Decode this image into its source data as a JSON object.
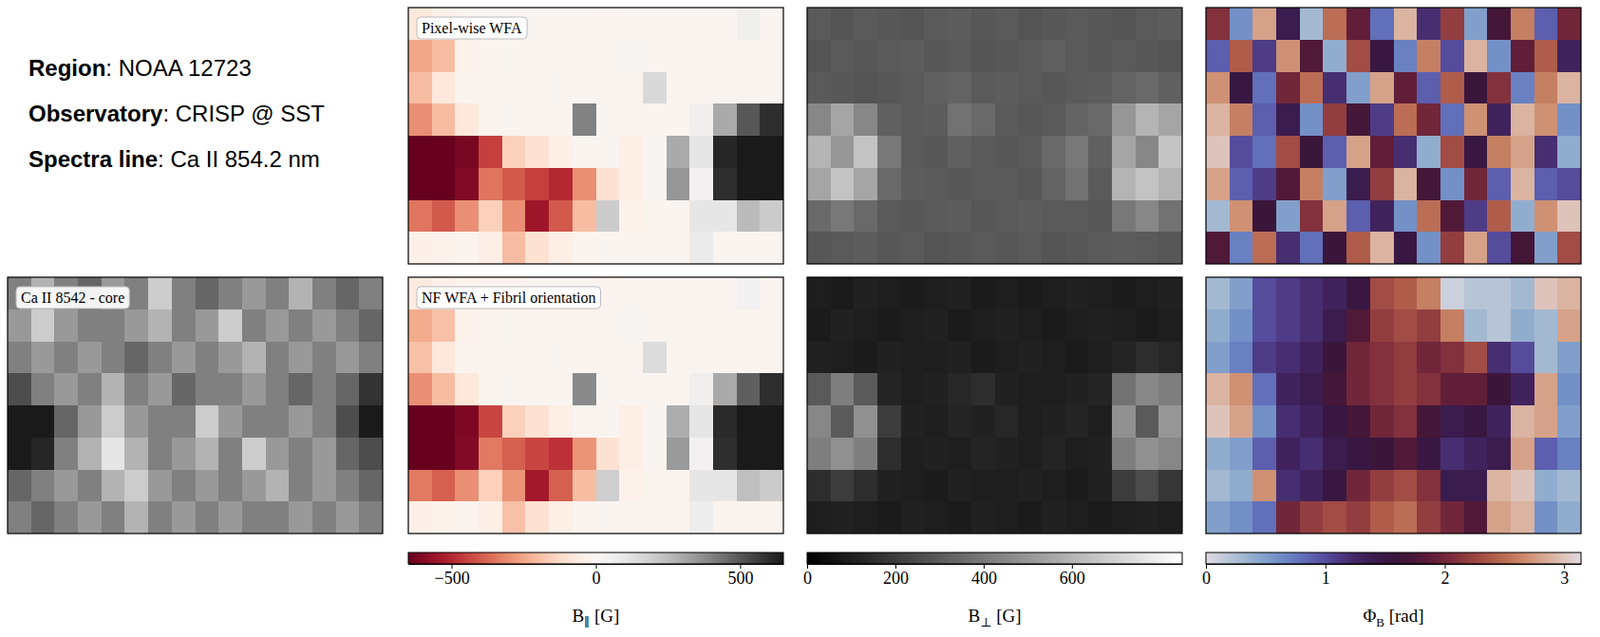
{
  "header": {
    "lines": [
      "Region: NOAA 12723",
      "Observatory: CRISP @ SST",
      "Spectra line: Ca II 854.2 nm"
    ]
  },
  "chart_data": [
    {
      "type": "heatmap",
      "title": "Ca II 8542 - core",
      "color": "gray",
      "zlim": [
        0,
        1
      ],
      "cells": [
        [
          0.5,
          0.7,
          0.5,
          0.4,
          0.6,
          0.5,
          0.8,
          0.5,
          0.4,
          0.5,
          0.6,
          0.5,
          0.7,
          0.5,
          0.4,
          0.5
        ],
        [
          0.6,
          0.8,
          0.6,
          0.5,
          0.5,
          0.6,
          0.7,
          0.5,
          0.6,
          0.8,
          0.5,
          0.6,
          0.5,
          0.6,
          0.5,
          0.4
        ],
        [
          0.5,
          0.6,
          0.5,
          0.6,
          0.5,
          0.4,
          0.5,
          0.6,
          0.5,
          0.6,
          0.7,
          0.5,
          0.6,
          0.5,
          0.6,
          0.5
        ],
        [
          0.3,
          0.5,
          0.6,
          0.5,
          0.7,
          0.5,
          0.6,
          0.4,
          0.5,
          0.5,
          0.6,
          0.5,
          0.4,
          0.5,
          0.4,
          0.2
        ],
        [
          0.1,
          0.1,
          0.4,
          0.6,
          0.8,
          0.6,
          0.5,
          0.5,
          0.8,
          0.6,
          0.5,
          0.5,
          0.6,
          0.5,
          0.3,
          0.1
        ],
        [
          0.1,
          0.15,
          0.5,
          0.7,
          0.9,
          0.7,
          0.5,
          0.6,
          0.7,
          0.5,
          0.8,
          0.6,
          0.5,
          0.6,
          0.4,
          0.3
        ],
        [
          0.4,
          0.5,
          0.6,
          0.5,
          0.7,
          0.8,
          0.6,
          0.5,
          0.6,
          0.5,
          0.6,
          0.7,
          0.5,
          0.6,
          0.5,
          0.4
        ],
        [
          0.5,
          0.4,
          0.5,
          0.6,
          0.5,
          0.7,
          0.5,
          0.6,
          0.5,
          0.6,
          0.5,
          0.5,
          0.6,
          0.5,
          0.6,
          0.5
        ]
      ]
    },
    {
      "type": "heatmap",
      "title": "Pixel-wise WFA",
      "color": "RdGy",
      "zlim": [
        -650,
        650
      ],
      "cells": [
        [
          -80,
          -40,
          -20,
          -10,
          -10,
          0,
          0,
          0,
          -10,
          0,
          0,
          0,
          0,
          0,
          60,
          0
        ],
        [
          -250,
          -200,
          -30,
          -10,
          0,
          0,
          0,
          0,
          0,
          20,
          0,
          0,
          0,
          0,
          0,
          0
        ],
        [
          -200,
          -80,
          -20,
          0,
          0,
          -20,
          0,
          0,
          0,
          0,
          150,
          0,
          0,
          0,
          0,
          0
        ],
        [
          -300,
          -200,
          -80,
          -20,
          0,
          0,
          0,
          400,
          0,
          0,
          0,
          0,
          60,
          300,
          500,
          600
        ],
        [
          -650,
          -650,
          -620,
          -450,
          -150,
          -100,
          -50,
          0,
          0,
          -50,
          0,
          300,
          100,
          620,
          650,
          650
        ],
        [
          -650,
          -650,
          -600,
          -350,
          -400,
          -450,
          -500,
          -300,
          -100,
          -50,
          0,
          350,
          50,
          600,
          650,
          650
        ],
        [
          -350,
          -400,
          -300,
          -150,
          -300,
          -550,
          -400,
          -200,
          200,
          -30,
          -20,
          0,
          100,
          100,
          250,
          200
        ],
        [
          -40,
          -30,
          -20,
          -50,
          -200,
          -100,
          -50,
          -20,
          0,
          0,
          0,
          0,
          80,
          0,
          0,
          0
        ]
      ]
    },
    {
      "type": "heatmap",
      "color": "gray",
      "zlim": [
        0,
        850
      ],
      "cells": [
        [
          300,
          280,
          300,
          290,
          280,
          300,
          310,
          290,
          300,
          280,
          290,
          300,
          290,
          280,
          300,
          310
        ],
        [
          280,
          300,
          290,
          300,
          310,
          290,
          300,
          280,
          290,
          300,
          320,
          300,
          290,
          300,
          290,
          280
        ],
        [
          300,
          290,
          280,
          290,
          300,
          320,
          330,
          300,
          310,
          300,
          290,
          300,
          310,
          330,
          350,
          320
        ],
        [
          450,
          550,
          450,
          320,
          300,
          310,
          380,
          350,
          300,
          290,
          300,
          330,
          350,
          500,
          600,
          550
        ],
        [
          600,
          500,
          650,
          400,
          300,
          290,
          320,
          300,
          290,
          300,
          350,
          400,
          320,
          550,
          450,
          650
        ],
        [
          550,
          650,
          550,
          350,
          310,
          300,
          290,
          300,
          300,
          290,
          330,
          380,
          300,
          600,
          650,
          600
        ],
        [
          350,
          400,
          350,
          300,
          290,
          300,
          310,
          290,
          300,
          310,
          300,
          300,
          290,
          400,
          450,
          380
        ],
        [
          290,
          300,
          310,
          290,
          300,
          280,
          290,
          300,
          290,
          300,
          280,
          290,
          300,
          310,
          300,
          290
        ]
      ]
    },
    {
      "type": "heatmap",
      "color": "twilight",
      "zlim": [
        0,
        3.1416
      ],
      "cells": [
        [
          2.1,
          0.6,
          2.8,
          1.4,
          0.3,
          2.5,
          1.9,
          0.8,
          2.9,
          1.2,
          2.2,
          0.5,
          1.7,
          2.6,
          0.9,
          2.0
        ],
        [
          0.9,
          2.4,
          1.1,
          2.7,
          1.8,
          0.4,
          2.3,
          1.5,
          0.7,
          2.6,
          1.0,
          2.9,
          0.6,
          1.9,
          2.4,
          1.3
        ],
        [
          2.7,
          1.5,
          0.8,
          2.0,
          2.5,
          1.2,
          0.5,
          2.8,
          1.9,
          0.9,
          2.4,
          1.6,
          2.1,
          0.7,
          2.6,
          2.9
        ],
        [
          2.9,
          2.6,
          0.9,
          1.4,
          0.6,
          2.2,
          1.7,
          1.1,
          2.5,
          2.0,
          0.8,
          2.7,
          1.3,
          2.9,
          2.7,
          0.6
        ],
        [
          3.0,
          1.0,
          0.8,
          2.3,
          1.6,
          0.9,
          2.8,
          1.9,
          1.2,
          0.4,
          2.3,
          1.5,
          2.6,
          2.8,
          1.2,
          0.4
        ],
        [
          2.8,
          0.9,
          1.1,
          1.8,
          2.6,
          0.5,
          1.4,
          2.2,
          2.9,
          1.7,
          0.6,
          2.0,
          0.9,
          2.9,
          0.9,
          1.0
        ],
        [
          0.3,
          2.7,
          1.6,
          0.5,
          2.1,
          2.8,
          0.9,
          1.3,
          0.6,
          2.5,
          1.8,
          1.1,
          2.4,
          0.4,
          2.7,
          3.0
        ],
        [
          1.8,
          0.7,
          2.5,
          1.2,
          0.8,
          1.6,
          2.4,
          2.9,
          1.5,
          0.6,
          2.2,
          2.8,
          1.0,
          1.7,
          0.5,
          2.3
        ]
      ]
    },
    {
      "type": "heatmap",
      "title": "NF WFA + Fibril orientation",
      "color": "RdGy",
      "zlim": [
        -650,
        650
      ],
      "colorbar": {
        "label": {
          "symbol": "B",
          "subscript": "∥",
          "unit": "[G]"
        },
        "ticks": [
          -500,
          0,
          500
        ]
      },
      "cells": [
        [
          -70,
          -40,
          -20,
          -10,
          -10,
          0,
          0,
          0,
          -10,
          0,
          0,
          0,
          0,
          0,
          50,
          0
        ],
        [
          -240,
          -190,
          -30,
          -10,
          0,
          0,
          0,
          0,
          0,
          20,
          0,
          0,
          0,
          0,
          0,
          0
        ],
        [
          -190,
          -80,
          -20,
          0,
          0,
          -20,
          0,
          0,
          0,
          0,
          140,
          0,
          0,
          0,
          0,
          0
        ],
        [
          -300,
          -200,
          -80,
          -20,
          0,
          0,
          0,
          380,
          0,
          0,
          0,
          0,
          60,
          300,
          480,
          600
        ],
        [
          -650,
          -650,
          -610,
          -440,
          -150,
          -100,
          -50,
          0,
          0,
          -50,
          0,
          290,
          100,
          610,
          650,
          650
        ],
        [
          -650,
          -650,
          -600,
          -340,
          -390,
          -440,
          -480,
          -290,
          -100,
          -50,
          0,
          340,
          50,
          600,
          650,
          650
        ],
        [
          -340,
          -390,
          -300,
          -150,
          -290,
          -540,
          -390,
          -200,
          190,
          -30,
          -20,
          0,
          100,
          100,
          240,
          200
        ],
        [
          -40,
          -30,
          -20,
          -50,
          -190,
          -100,
          -50,
          -20,
          0,
          0,
          0,
          0,
          70,
          0,
          0,
          0
        ]
      ]
    },
    {
      "type": "heatmap",
      "color": "gray",
      "zlim": [
        0,
        850
      ],
      "colorbar": {
        "label": {
          "symbol": "B",
          "subscript": "⊥",
          "unit": "[G]"
        },
        "ticks": [
          0,
          200,
          400,
          600
        ]
      },
      "cells": [
        [
          100,
          90,
          110,
          100,
          90,
          100,
          110,
          90,
          100,
          90,
          100,
          110,
          100,
          90,
          100,
          110
        ],
        [
          90,
          110,
          100,
          90,
          100,
          110,
          90,
          100,
          110,
          100,
          90,
          100,
          110,
          100,
          90,
          100
        ],
        [
          110,
          100,
          90,
          110,
          100,
          100,
          110,
          90,
          100,
          110,
          100,
          90,
          100,
          120,
          150,
          130
        ],
        [
          300,
          420,
          300,
          120,
          100,
          110,
          130,
          150,
          110,
          100,
          100,
          110,
          120,
          380,
          450,
          420
        ],
        [
          450,
          300,
          480,
          200,
          110,
          100,
          120,
          110,
          130,
          100,
          110,
          120,
          100,
          480,
          300,
          500
        ],
        [
          420,
          480,
          420,
          150,
          100,
          110,
          100,
          120,
          110,
          100,
          120,
          100,
          110,
          420,
          480,
          450
        ],
        [
          150,
          200,
          150,
          110,
          100,
          90,
          110,
          100,
          100,
          110,
          100,
          90,
          110,
          200,
          250,
          180
        ],
        [
          100,
          110,
          100,
          90,
          110,
          100,
          90,
          110,
          100,
          90,
          110,
          100,
          90,
          100,
          110,
          100
        ]
      ]
    },
    {
      "type": "heatmap",
      "color": "twilight",
      "zlim": [
        0,
        3.1416
      ],
      "colorbar": {
        "label": {
          "symbol": "Φ",
          "subscript": "B",
          "unit": "[rad]"
        },
        "ticks": [
          0,
          1,
          2,
          3
        ]
      },
      "cells": [
        [
          0.3,
          0.5,
          1.0,
          1.1,
          1.2,
          1.3,
          1.5,
          2.3,
          2.4,
          2.6,
          0.1,
          0.2,
          0.2,
          0.3,
          3.0,
          2.9
        ],
        [
          0.4,
          0.6,
          1.0,
          1.1,
          1.2,
          1.4,
          1.8,
          2.2,
          2.3,
          2.2,
          2.6,
          0.3,
          0.2,
          0.4,
          0.3,
          2.8
        ],
        [
          0.5,
          0.7,
          1.1,
          1.2,
          1.3,
          1.6,
          2.0,
          2.1,
          2.2,
          2.0,
          2.1,
          2.3,
          1.2,
          1.0,
          0.3,
          0.5
        ],
        [
          2.9,
          2.7,
          0.8,
          1.3,
          1.4,
          1.7,
          2.0,
          2.1,
          2.2,
          2.1,
          1.9,
          1.9,
          1.6,
          1.3,
          2.8,
          0.6
        ],
        [
          3.0,
          2.8,
          0.6,
          1.2,
          1.3,
          1.5,
          1.7,
          2.0,
          2.1,
          1.7,
          1.4,
          1.5,
          1.3,
          2.9,
          2.8,
          0.5
        ],
        [
          0.4,
          0.5,
          0.9,
          1.3,
          1.2,
          1.4,
          1.5,
          1.6,
          1.8,
          1.5,
          1.2,
          1.3,
          1.4,
          2.8,
          0.9,
          0.7
        ],
        [
          0.3,
          0.4,
          2.7,
          1.2,
          1.3,
          1.5,
          2.0,
          2.2,
          2.3,
          2.1,
          1.4,
          1.4,
          2.9,
          3.0,
          0.4,
          0.3
        ],
        [
          0.5,
          0.6,
          0.8,
          2.0,
          2.2,
          2.3,
          2.2,
          2.4,
          2.5,
          2.2,
          2.0,
          1.8,
          2.8,
          2.9,
          0.6,
          0.4
        ]
      ]
    }
  ]
}
